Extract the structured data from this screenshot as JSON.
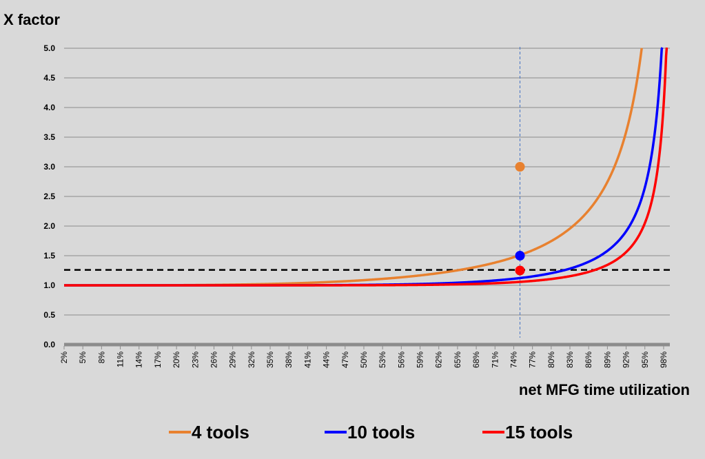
{
  "chart_data": {
    "type": "line",
    "ylabel": "X factor",
    "xlabel": "net MFG time utilization",
    "ylim": [
      0,
      5
    ],
    "yticks": [
      "0.0",
      "0.5",
      "1.0",
      "1.5",
      "2.0",
      "2.5",
      "3.0",
      "3.5",
      "4.0",
      "4.5",
      "5.0"
    ],
    "x_tick_labels": [
      "2%",
      "5%",
      "8%",
      "11%",
      "14%",
      "17%",
      "20%",
      "23%",
      "26%",
      "29%",
      "32%",
      "35%",
      "38%",
      "41%",
      "44%",
      "47%",
      "50%",
      "53%",
      "56%",
      "59%",
      "62%",
      "65%",
      "68%",
      "71%",
      "74%",
      "77%",
      "80%",
      "83%",
      "86%",
      "89%",
      "92%",
      "95%",
      "98%"
    ],
    "x_range_percent": [
      2,
      99
    ],
    "grid": "horizontal",
    "legend_position": "bottom",
    "series": [
      {
        "name": "4 tools",
        "color": "#e8812f",
        "model": "mmc",
        "servers": 4
      },
      {
        "name": "10 tools",
        "color": "#0000ff",
        "model": "mmc",
        "servers": 10
      },
      {
        "name": "15 tools",
        "color": "#ff0000",
        "model": "mmc",
        "servers": 15
      }
    ],
    "markers": [
      {
        "series": "4 tools",
        "x_percent": 75,
        "y": 3.0
      },
      {
        "series": "10 tools",
        "x_percent": 75,
        "y": 1.5
      },
      {
        "series": "15 tools",
        "x_percent": 75,
        "y": 1.25
      }
    ],
    "reference_lines": {
      "horizontal_y": 1.26,
      "vertical_x_percent": 75
    }
  }
}
